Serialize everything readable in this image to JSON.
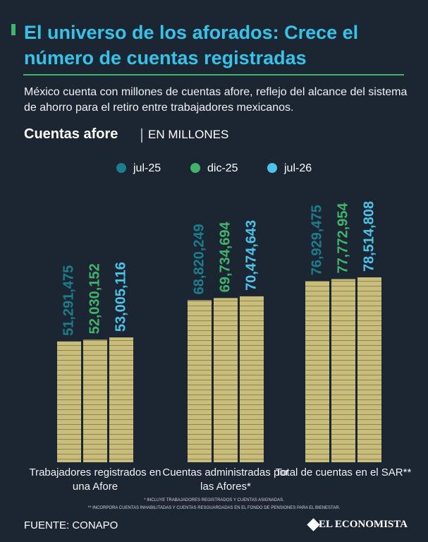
{
  "chart_data": {
    "type": "bar",
    "title": "El universo de los aforados: Crece el número de cuentas registradas",
    "subtitle": "México cuenta con millones de cuentas afore, reflejo del alcance del sistema de ahorro para el retiro entre trabajadores mexicanos.",
    "chart_title": "Cuentas afore",
    "chart_unit": "EN MILLONES",
    "categories": [
      "Trabajadores registrados en una Afore",
      "Cuentas administradas por las Afores*",
      "Total de cuentas en el SAR**"
    ],
    "series": [
      {
        "name": "jul-25",
        "color": "#1b7e8c",
        "values": [
          51291475,
          68820249,
          76929475
        ],
        "value_labels": [
          "51,291,475",
          "68,820,249",
          "76,929,475"
        ]
      },
      {
        "name": "dic-25",
        "color": "#3fb56b",
        "values": [
          52030152,
          69734694,
          77772954
        ],
        "value_labels": [
          "52,030,152",
          "69,734,694",
          "77,772,954"
        ]
      },
      {
        "name": "jul-26",
        "color": "#4cc4ea",
        "values": [
          53005116,
          70474643,
          78514808
        ],
        "value_labels": [
          "53,005,116",
          "70,474,643",
          "78,514,808"
        ]
      }
    ],
    "footnotes": [
      "* INCLUYE TRABAJADORES REGISTRADOS Y CUENTAS ASIGNADAS.",
      "** INCORPORA CUENTAS INHABILITADAS Y CUENTAS RESGUARDADAS EN EL FONDO DE PENSIONES PARA EL BIENESTAR."
    ],
    "source": "FUENTE: CONAPO",
    "brand": "EL ECONOMISTA"
  }
}
